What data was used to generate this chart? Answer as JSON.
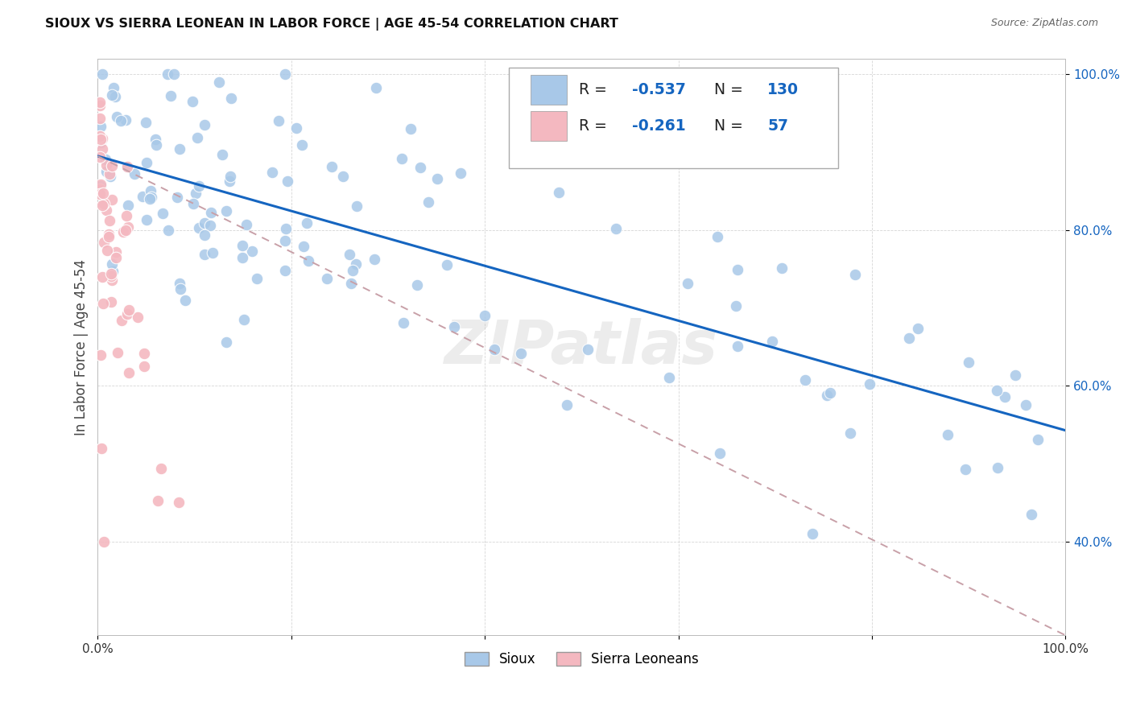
{
  "title": "SIOUX VS SIERRA LEONEAN IN LABOR FORCE | AGE 45-54 CORRELATION CHART",
  "source": "Source: ZipAtlas.com",
  "ylabel": "In Labor Force | Age 45-54",
  "xlim": [
    0.0,
    1.0
  ],
  "ylim": [
    0.28,
    1.02
  ],
  "x_ticks": [
    0.0,
    0.2,
    0.4,
    0.6,
    0.8,
    1.0
  ],
  "x_tick_labels": [
    "0.0%",
    "",
    "",
    "",
    "",
    "100.0%"
  ],
  "y_ticks": [
    0.4,
    0.6,
    0.8,
    1.0
  ],
  "y_tick_labels": [
    "40.0%",
    "60.0%",
    "80.0%",
    "100.0%"
  ],
  "blue_color": "#a8c8e8",
  "pink_color": "#f4b8c0",
  "blue_line_color": "#1565c0",
  "pink_line_color": "#c8a0a8",
  "R_blue": -0.537,
  "N_blue": 130,
  "R_pink": -0.261,
  "N_pink": 57,
  "watermark": "ZIPatlas",
  "blue_line_x0": 0.0,
  "blue_line_y0": 0.895,
  "blue_line_x1": 1.0,
  "blue_line_y1": 0.543,
  "pink_line_x0": 0.0,
  "pink_line_y0": 0.895,
  "pink_line_x1": 1.0,
  "pink_line_y1": 0.28
}
